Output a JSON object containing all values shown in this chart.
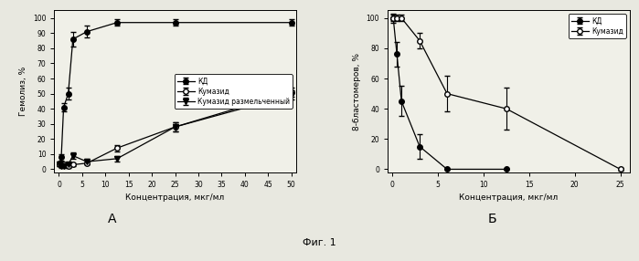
{
  "fig_label": "Фиг. 1",
  "label_A": "A",
  "label_B": "Б",
  "bg_color": "#e8e8e0",
  "chartA": {
    "xlabel": "Концентрация, мкг/мл",
    "ylabel": "Гемолиз, %",
    "xlim": [
      -1,
      51
    ],
    "ylim": [
      -2,
      105
    ],
    "xticks": [
      0,
      5,
      10,
      15,
      20,
      25,
      30,
      35,
      40,
      45,
      50
    ],
    "yticks": [
      0,
      10,
      20,
      30,
      40,
      50,
      60,
      70,
      80,
      90,
      100
    ],
    "series": [
      {
        "label": "КД",
        "x": [
          0.1,
          0.5,
          1,
          2,
          3,
          6,
          12.5,
          25,
          50
        ],
        "y": [
          4,
          8,
          41,
          50,
          86,
          91,
          97,
          97,
          97
        ],
        "yerr": [
          1,
          2,
          3,
          4,
          5,
          4,
          2,
          2,
          2
        ],
        "marker": "o",
        "fillstyle": "full",
        "color": "black",
        "linestyle": "-"
      },
      {
        "label": "Кумазид",
        "x": [
          0.1,
          0.5,
          1,
          2,
          3,
          6,
          12.5,
          25,
          50
        ],
        "y": [
          3,
          3,
          3,
          2,
          3,
          4,
          14,
          28,
          51
        ],
        "yerr": [
          1,
          1,
          1,
          1,
          1,
          1,
          2,
          3,
          3
        ],
        "marker": "o",
        "fillstyle": "none",
        "color": "black",
        "linestyle": "-"
      },
      {
        "label": "Кумазид размельченный",
        "x": [
          0.1,
          0.5,
          1,
          2,
          3,
          6,
          12.5,
          25,
          50
        ],
        "y": [
          3,
          2,
          2,
          3,
          9,
          5,
          7,
          28,
          49
        ],
        "yerr": [
          1,
          1,
          1,
          1,
          2,
          2,
          2,
          3,
          3
        ],
        "marker": "v",
        "fillstyle": "full",
        "color": "black",
        "linestyle": "-"
      }
    ]
  },
  "chartB": {
    "xlabel": "Концентрация, мкг/мл",
    "ylabel": "8-бластомеров, %",
    "xlim": [
      -0.5,
      26
    ],
    "ylim": [
      -2,
      105
    ],
    "xticks": [
      0,
      5,
      10,
      15,
      20,
      25
    ],
    "yticks": [
      0,
      20,
      40,
      60,
      80,
      100
    ],
    "series": [
      {
        "label": "КД",
        "x": [
          0.1,
          0.5,
          1,
          3,
          6,
          12.5
        ],
        "y": [
          100,
          76,
          45,
          15,
          0,
          0
        ],
        "yerr": [
          3,
          8,
          10,
          8,
          0,
          0
        ],
        "marker": "o",
        "fillstyle": "full",
        "color": "black",
        "linestyle": "-"
      },
      {
        "label": "Кумазид",
        "x": [
          0.1,
          0.5,
          1,
          3,
          6,
          12.5,
          25
        ],
        "y": [
          100,
          100,
          100,
          85,
          50,
          40,
          0
        ],
        "yerr": [
          2,
          2,
          2,
          5,
          12,
          14,
          1
        ],
        "marker": "o",
        "fillstyle": "none",
        "color": "black",
        "linestyle": "-"
      }
    ]
  }
}
